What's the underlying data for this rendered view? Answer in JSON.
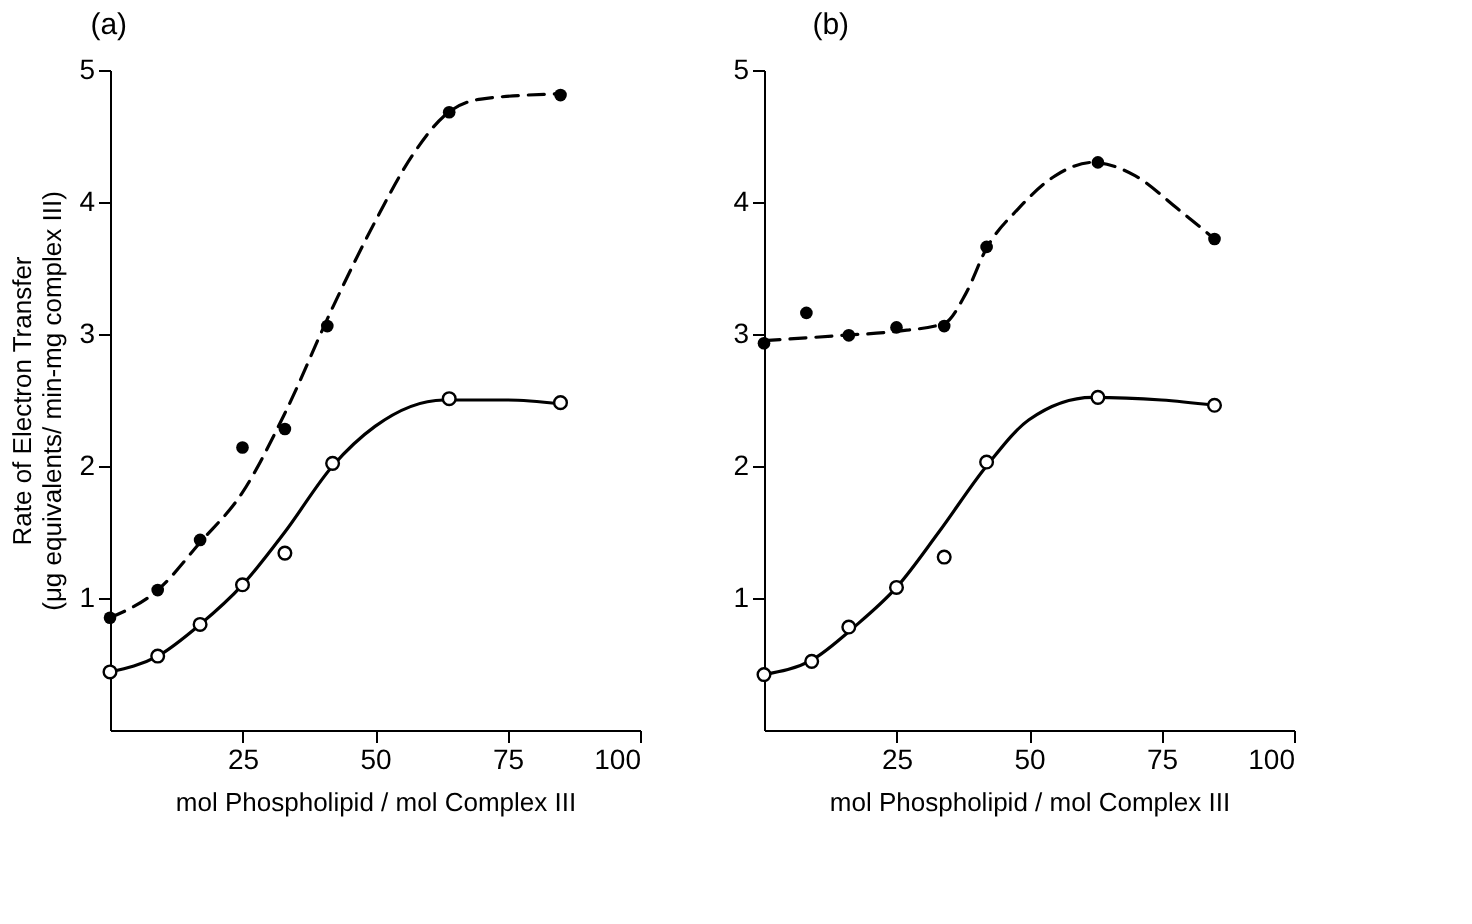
{
  "chart_data": [
    {
      "type": "scatter",
      "title": "(a)",
      "xlabel": "mol Phospholipid / mol Complex III",
      "ylabel": [
        "Rate of Electron Transfer",
        "(μg equivalents/ min-mg complex III)"
      ],
      "xlim": [
        0,
        100
      ],
      "xticks": [
        25,
        50,
        75,
        100
      ],
      "ylim": [
        0,
        5
      ],
      "yticks": [
        1,
        2,
        3,
        4,
        5
      ],
      "grid": false,
      "series": [
        {
          "type": "line",
          "line_style": "dashed",
          "color": "#000000",
          "x": [
            0,
            9,
            17,
            25,
            33,
            42,
            50,
            57,
            63,
            70,
            85
          ],
          "values": [
            0.85,
            1.06,
            1.42,
            1.8,
            2.4,
            3.2,
            3.85,
            4.35,
            4.65,
            4.78,
            4.82
          ]
        },
        {
          "marker": "circle",
          "color": "#000000",
          "x": [
            0,
            9,
            17,
            25,
            33,
            41,
            64,
            85
          ],
          "values": [
            0.85,
            1.06,
            1.44,
            2.14,
            2.28,
            3.06,
            4.68,
            4.81
          ]
        },
        {
          "type": "line",
          "line_style": "solid",
          "color": "#000000",
          "x": [
            0,
            9,
            17,
            25,
            33,
            42,
            50,
            63,
            75,
            85
          ],
          "values": [
            0.44,
            0.56,
            0.8,
            1.1,
            1.5,
            2.0,
            2.3,
            2.5,
            2.5,
            2.47
          ]
        },
        {
          "marker": "circle",
          "color": "#000000",
          "x": [
            0,
            9,
            17,
            25,
            33,
            42,
            64,
            85
          ],
          "values": [
            0.44,
            0.56,
            0.8,
            1.1,
            1.34,
            2.02,
            2.51,
            2.48
          ]
        }
      ]
    },
    {
      "type": "scatter",
      "title": "(b)",
      "xlabel": "mol Phospholipid / mol Complex III",
      "xlim": [
        0,
        100
      ],
      "xticks": [
        25,
        50,
        75,
        100
      ],
      "ylim": [
        0,
        5
      ],
      "yticks": [
        1,
        2,
        3,
        4,
        5
      ],
      "grid": false,
      "series": [
        {
          "type": "line",
          "line_style": "dashed",
          "color": "#000000",
          "x": [
            0,
            15,
            25,
            34,
            38,
            42,
            48,
            55,
            62,
            70,
            78,
            85
          ],
          "values": [
            2.95,
            2.99,
            3.02,
            3.08,
            3.3,
            3.65,
            3.95,
            4.2,
            4.3,
            4.2,
            3.95,
            3.72
          ]
        },
        {
          "marker": "circle",
          "color": "#000000",
          "x": [
            0,
            8,
            16,
            25,
            34,
            42,
            63,
            85
          ],
          "values": [
            2.93,
            3.16,
            2.99,
            3.05,
            3.06,
            3.66,
            4.3,
            3.72
          ]
        },
        {
          "type": "line",
          "line_style": "solid",
          "color": "#000000",
          "x": [
            0,
            9,
            17,
            25,
            33,
            42,
            50,
            62,
            75,
            85
          ],
          "values": [
            0.42,
            0.53,
            0.78,
            1.08,
            1.5,
            2.0,
            2.35,
            2.52,
            2.5,
            2.46
          ]
        },
        {
          "marker": "circle",
          "color": "#000000",
          "x": [
            0,
            9,
            16,
            25,
            34,
            42,
            63,
            85
          ],
          "values": [
            0.42,
            0.52,
            0.78,
            1.08,
            1.31,
            2.03,
            2.52,
            2.46
          ]
        }
      ]
    }
  ]
}
